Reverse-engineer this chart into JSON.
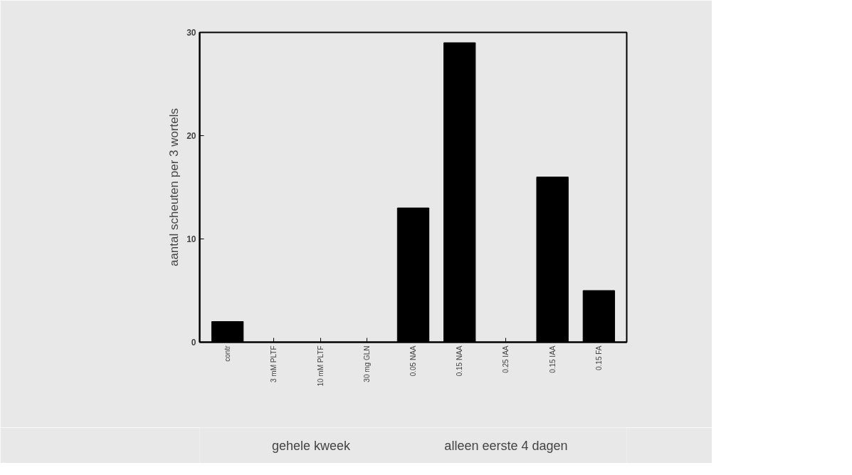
{
  "chart_data": {
    "type": "bar",
    "ylabel": "aantal scheuten per 3 wortels",
    "categories": [
      "contr",
      "3 mM PLTF",
      "10 mM PLTF",
      "30 mg GLN",
      "0.05 NAA",
      "0.15 NAA",
      "0.25 IAA",
      "0.15 IAA",
      "0.15 FA"
    ],
    "values": [
      2,
      0,
      0,
      0,
      13,
      29,
      0,
      16,
      5
    ],
    "color": "#000000",
    "ylim": [
      0,
      30
    ],
    "yticks": [
      0,
      10,
      20,
      30
    ],
    "annotations": [
      "gehele kweek",
      "alleen eerste 4 dagen"
    ]
  }
}
